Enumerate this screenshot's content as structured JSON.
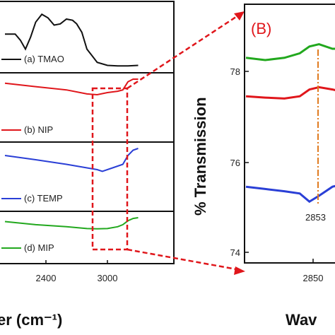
{
  "panels": {
    "left": {
      "legend": [
        {
          "text": "(a) TMAO",
          "color": "#111111"
        },
        {
          "text": "(b) NIP",
          "color": "#e0161b"
        },
        {
          "text": "(c) TEMP",
          "color": "#2a3fd6"
        },
        {
          "text": "(d) MIP",
          "color": "#22a81e"
        }
      ],
      "x_ticks": [
        "2400",
        "3000"
      ],
      "xlabel": "er (cm⁻¹)"
    },
    "right": {
      "label": "(B)",
      "ylabel": "% Transmission",
      "y_ticks": [
        "78",
        "76",
        "74"
      ],
      "x_ticks": [
        "2850"
      ],
      "xlabel": "Wav",
      "annotation": "2853"
    }
  },
  "colors": {
    "tmao": "#111111",
    "nip": "#e0161b",
    "temp": "#2a3fd6",
    "mip": "#22a81e",
    "zoom_box": "#e0161b",
    "peak_line": "#e07b20",
    "panel_label": "#e0161b"
  },
  "chart_data": [
    {
      "type": "line",
      "title": "",
      "xlabel": "er (cm⁻¹)",
      "ylabel": "",
      "x_ticks": [
        2400,
        3000
      ],
      "series": [
        {
          "name": "(a) TMAO",
          "x": [
            2000,
            2100,
            2150,
            2200,
            2250,
            2300,
            2360,
            2420,
            2480,
            2540,
            2600,
            2660,
            2700,
            2750,
            2800,
            2900,
            3000,
            3100,
            3200,
            3300
          ],
          "y": [
            0.55,
            0.55,
            0.45,
            0.3,
            0.5,
            0.75,
            0.88,
            0.82,
            0.7,
            0.72,
            0.8,
            0.78,
            0.72,
            0.58,
            0.3,
            0.08,
            0.03,
            0.02,
            0.02,
            0.03
          ]
        },
        {
          "name": "(b) NIP",
          "x": [
            2000,
            2300,
            2600,
            2800,
            2900,
            3000,
            3100,
            3150,
            3200,
            3250,
            3300
          ],
          "y": [
            0.85,
            0.72,
            0.6,
            0.45,
            0.42,
            0.5,
            0.55,
            0.6,
            0.9,
            1.0,
            1.0
          ]
        },
        {
          "name": "(c) TEMP",
          "x": [
            2000,
            2300,
            2600,
            2800,
            2900,
            2950,
            3050,
            3150,
            3200,
            3250,
            3300
          ],
          "y": [
            0.8,
            0.68,
            0.55,
            0.45,
            0.4,
            0.35,
            0.45,
            0.55,
            0.8,
            0.95,
            1.0
          ]
        },
        {
          "name": "(d) MIP",
          "x": [
            2000,
            2300,
            2600,
            2800,
            2900,
            3000,
            3100,
            3150,
            3200,
            3250,
            3300
          ],
          "y": [
            0.75,
            0.55,
            0.42,
            0.3,
            0.28,
            0.3,
            0.42,
            0.55,
            0.8,
            0.95,
            1.0
          ]
        }
      ]
    },
    {
      "type": "line",
      "title": "",
      "xlabel": "Wav",
      "ylabel": "% Transmission",
      "ylim": [
        73.8,
        79.8
      ],
      "xlim": [
        2820,
        2870
      ],
      "y_ticks": [
        74,
        76,
        78
      ],
      "x_ticks": [
        2850
      ],
      "annotations": [
        "2853"
      ],
      "series": [
        {
          "name": "(d) MIP",
          "x": [
            2820,
            2830,
            2840,
            2848,
            2853,
            2858,
            2865,
            2870
          ],
          "y": [
            78.3,
            78.25,
            78.3,
            78.4,
            78.55,
            78.6,
            78.5,
            78.5
          ]
        },
        {
          "name": "(b) NIP",
          "x": [
            2820,
            2830,
            2840,
            2848,
            2853,
            2858,
            2865,
            2870
          ],
          "y": [
            77.45,
            77.42,
            77.4,
            77.45,
            77.6,
            77.65,
            77.6,
            77.55
          ]
        },
        {
          "name": "(c) TEMP",
          "x": [
            2820,
            2830,
            2840,
            2848,
            2853,
            2858,
            2865,
            2870
          ],
          "y": [
            75.45,
            75.4,
            75.35,
            75.3,
            75.12,
            75.25,
            75.45,
            75.5
          ]
        }
      ]
    }
  ]
}
